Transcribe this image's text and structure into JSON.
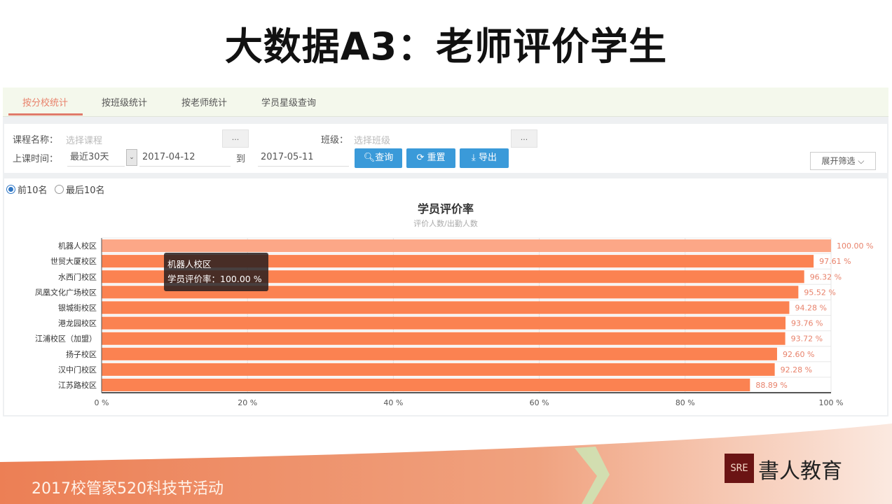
{
  "slide": {
    "title": "大数据A3：老师评价学生",
    "footer": "2017校管家520科技节活动",
    "logo_mark": "SRE",
    "logo_text": "書人教育"
  },
  "tabs": [
    {
      "label": "按分校统计",
      "active": true
    },
    {
      "label": "按班级统计"
    },
    {
      "label": "按老师统计"
    },
    {
      "label": "学员星级查询"
    }
  ],
  "filter": {
    "course_label": "课程名称：",
    "course_placeholder": "选择课程",
    "dots": "...",
    "class_label": "班级：",
    "class_placeholder": "选择班级",
    "time_label": "上课时间：",
    "time_range": "最近30天",
    "date_from": "2017-04-12",
    "to_label": "到",
    "date_to": "2017-05-11",
    "query": "查询",
    "reset": "重置",
    "export": "导出",
    "expand": "展开筛选"
  },
  "ranking": {
    "top": "前10名",
    "bottom": "最后10名",
    "selected": "top"
  },
  "tooltip": {
    "title": "机器人校区",
    "line": "学员评价率：100.00 %"
  },
  "colors": {
    "bar": "#fb8251",
    "bar_highlight": "#fca787",
    "label": "#e8826b",
    "button": "#3a9ad9"
  },
  "chart_data": {
    "type": "bar",
    "orientation": "horizontal",
    "title": "学员评价率",
    "subtitle": "评价人数/出勤人数",
    "categories": [
      "机器人校区",
      "世贸大厦校区",
      "水西门校区",
      "凤凰文化广场校区",
      "银城街校区",
      "港龙园校区",
      "江浦校区（加盟）",
      "扬子校区",
      "汉中门校区",
      "江苏路校区"
    ],
    "values": [
      100.0,
      97.61,
      96.32,
      95.52,
      94.28,
      93.76,
      93.72,
      92.6,
      92.28,
      88.89
    ],
    "value_labels": [
      "100.00 %",
      "97.61 %",
      "96.32 %",
      "95.52 %",
      "94.28 %",
      "93.76 %",
      "93.72 %",
      "92.60 %",
      "92.28 %",
      "88.89 %"
    ],
    "xlim": [
      0,
      100
    ],
    "xticks": [
      "0 %",
      "20 %",
      "40 %",
      "60 %",
      "80 %",
      "100 %"
    ],
    "grid": true
  }
}
